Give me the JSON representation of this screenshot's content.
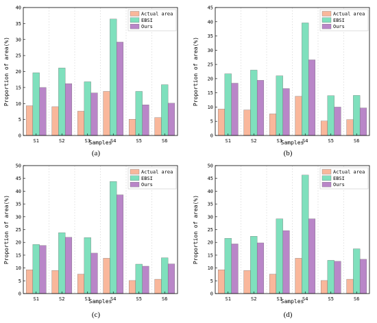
{
  "colors": {
    "actual": "#f9b79b",
    "ebsi": "#7fe0bd",
    "ours": "#b986c8",
    "grid": "#d8d8d8",
    "axis": "#000000"
  },
  "chart_data": [
    {
      "type": "bar",
      "caption": "(a)",
      "xlabel": "Samples",
      "ylabel": "Proportion of area(%)",
      "categories": [
        "S1",
        "S2",
        "S3",
        "S4",
        "S5",
        "S6"
      ],
      "ylim": [
        0,
        40
      ],
      "yticks": [
        0,
        5,
        10,
        15,
        20,
        25,
        30,
        35,
        40
      ],
      "legend_position": "top-right",
      "series": [
        {
          "name": "Actual area",
          "values": [
            9.3,
            9.0,
            7.6,
            13.8,
            5.1,
            5.6
          ]
        },
        {
          "name": "EBSI",
          "values": [
            19.6,
            21.1,
            16.8,
            36.4,
            13.8,
            15.9
          ]
        },
        {
          "name": "Ours",
          "values": [
            15.0,
            16.2,
            13.3,
            29.2,
            9.6,
            10.1
          ]
        }
      ]
    },
    {
      "type": "bar",
      "caption": "(b)",
      "xlabel": "Samples",
      "ylabel": "Proportion of area(%)",
      "categories": [
        "S1",
        "S2",
        "S3",
        "S4",
        "S5",
        "S6"
      ],
      "ylim": [
        0,
        45
      ],
      "yticks": [
        0,
        5,
        10,
        15,
        20,
        25,
        30,
        35,
        40,
        45
      ],
      "legend_position": "top-right",
      "series": [
        {
          "name": "Actual area",
          "values": [
            9.3,
            9.0,
            7.6,
            13.8,
            5.1,
            5.6
          ]
        },
        {
          "name": "EBSI",
          "values": [
            21.7,
            23.0,
            21.0,
            39.6,
            14.0,
            14.1
          ]
        },
        {
          "name": "Ours",
          "values": [
            18.4,
            19.4,
            16.5,
            26.6,
            10.0,
            9.7
          ]
        }
      ]
    },
    {
      "type": "bar",
      "caption": "(c)",
      "xlabel": "Samples",
      "ylabel": "Proportion of area(%)",
      "categories": [
        "S1",
        "S2",
        "S3",
        "S4",
        "S5",
        "S6"
      ],
      "ylim": [
        0,
        50
      ],
      "yticks": [
        0,
        5,
        10,
        15,
        20,
        25,
        30,
        35,
        40,
        45,
        50
      ],
      "legend_position": "top-right",
      "series": [
        {
          "name": "Actual area",
          "values": [
            9.3,
            9.0,
            7.6,
            13.8,
            5.1,
            5.6
          ]
        },
        {
          "name": "EBSI",
          "values": [
            19.2,
            23.8,
            21.9,
            43.8,
            11.5,
            14.0
          ]
        },
        {
          "name": "Ours",
          "values": [
            18.8,
            22.0,
            15.8,
            38.6,
            10.7,
            11.6
          ]
        }
      ]
    },
    {
      "type": "bar",
      "caption": "(d)",
      "xlabel": "Samples",
      "ylabel": "Proportion of area(%)",
      "categories": [
        "S1",
        "S2",
        "S3",
        "S4",
        "S5",
        "S6"
      ],
      "ylim": [
        0,
        50
      ],
      "yticks": [
        0,
        5,
        10,
        15,
        20,
        25,
        30,
        35,
        40,
        45,
        50
      ],
      "legend_position": "top-right",
      "series": [
        {
          "name": "Actual area",
          "values": [
            9.3,
            9.0,
            7.6,
            13.8,
            5.1,
            5.6
          ]
        },
        {
          "name": "EBSI",
          "values": [
            21.6,
            22.4,
            29.2,
            46.3,
            13.0,
            17.5
          ]
        },
        {
          "name": "Ours",
          "values": [
            19.4,
            19.8,
            24.6,
            29.2,
            12.6,
            13.4
          ]
        }
      ]
    }
  ]
}
